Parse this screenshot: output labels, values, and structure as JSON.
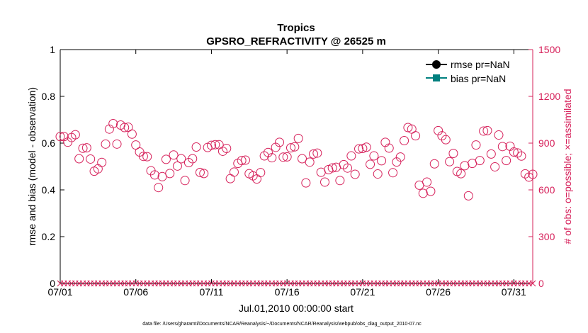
{
  "chart_data": {
    "type": "scatter",
    "title": "Tropics",
    "subtitle": "GPSRO_REFRACTIVITY @ 26525 m",
    "xlabel": "Jul.01,2010 00:00:00 start",
    "ylabel_left": "rmse and bias (model - observation)",
    "ylabel_right": "# of obs: o=possible; ×=assimilated",
    "footnote": "data file: /Users/gharamti/Documents/NCAR/Reanalysis/~/Documents/NCAR/Reanalysis/webpub/obs_diag_output_2010-07.nc",
    "x_ticks": [
      "07/01",
      "07/06",
      "07/11",
      "07/16",
      "07/21",
      "07/26",
      "07/31"
    ],
    "xlim_days": [
      0,
      31.25
    ],
    "ylim_left": [
      0,
      1
    ],
    "yticks_left": [
      "0",
      "0.2",
      "0.4",
      "0.6",
      "0.8",
      "1"
    ],
    "ylim_right": [
      0,
      1500
    ],
    "yticks_right": [
      "0",
      "300",
      "600",
      "900",
      "1200",
      "1500"
    ],
    "legend": [
      {
        "label": "rmse pr=NaN",
        "color": "#000000",
        "marker": "circle"
      },
      {
        "label": "bias pr=NaN",
        "color": "#00807f",
        "marker": "square"
      }
    ],
    "colors": {
      "obs": "#d6205a",
      "rmse": "#000000",
      "bias": "#00807f",
      "axis_right": "#d6205a"
    },
    "series": [
      {
        "name": "possible obs (o)",
        "axis": "right",
        "x_days": [
          0.0,
          0.25,
          0.5,
          0.75,
          1.0,
          1.25,
          1.5,
          1.75,
          2.0,
          2.25,
          2.5,
          2.75,
          3.0,
          3.25,
          3.5,
          3.75,
          4.0,
          4.25,
          4.5,
          4.75,
          5.0,
          5.25,
          5.5,
          5.75,
          6.0,
          6.25,
          6.5,
          6.75,
          7.0,
          7.25,
          7.5,
          7.75,
          8.0,
          8.25,
          8.5,
          8.75,
          9.0,
          9.25,
          9.5,
          9.75,
          10.0,
          10.25,
          10.5,
          10.75,
          11.0,
          11.25,
          11.5,
          11.75,
          12.0,
          12.25,
          12.5,
          12.75,
          13.0,
          13.25,
          13.5,
          13.75,
          14.0,
          14.25,
          14.5,
          14.75,
          15.0,
          15.25,
          15.5,
          15.75,
          16.0,
          16.25,
          16.5,
          16.75,
          17.0,
          17.25,
          17.5,
          17.75,
          18.0,
          18.25,
          18.5,
          18.75,
          19.0,
          19.25,
          19.5,
          19.75,
          20.0,
          20.25,
          20.5,
          20.75,
          21.0,
          21.25,
          21.5,
          21.75,
          22.0,
          22.25,
          22.5,
          22.75,
          23.0,
          23.25,
          23.5,
          23.75,
          24.0,
          24.25,
          24.5,
          24.75,
          25.0,
          25.25,
          25.5,
          25.75,
          26.0,
          26.25,
          26.5,
          26.75,
          27.0,
          27.25,
          27.5,
          27.75,
          28.0,
          28.25,
          28.5,
          28.75,
          29.0,
          29.25,
          29.5,
          29.75,
          30.0,
          30.25,
          30.5,
          30.75,
          31.0,
          31.25
        ],
        "values": [
          942,
          942,
          906,
          936,
          954,
          800,
          867,
          870,
          798,
          720,
          735,
          776,
          894,
          990,
          1025,
          894,
          1016,
          1000,
          1002,
          958,
          888,
          843,
          815,
          813,
          723,
          696,
          615,
          685,
          796,
          705,
          824,
          753,
          800,
          660,
          775,
          800,
          875,
          712,
          705,
          872,
          886,
          890,
          890,
          848,
          866,
          672,
          714,
          770,
          788,
          791,
          704,
          690,
          670,
          711,
          818,
          840,
          806,
          873,
          905,
          810,
          812,
          870,
          876,
          930,
          800,
          645,
          778,
          830,
          836,
          713,
          650,
          730,
          741,
          745,
          660,
          762,
          740,
          818,
          700,
          863,
          866,
          874,
          764,
          818,
          702,
          787,
          905,
          868,
          710,
          779,
          811,
          916,
          1000,
          990,
          947,
          630,
          578,
          650,
          591,
          767,
          980,
          947,
          922,
          781,
          834,
          718,
          704,
          755,
          562,
          770,
          888,
          788,
          977,
          980,
          830,
          748,
          952,
          878,
          788,
          880,
          843,
          837,
          817,
          703,
          682,
          700
        ],
        "marker": "open-circle"
      },
      {
        "name": "assimilated obs (×)",
        "axis": "right",
        "value_all": 0,
        "count": 126,
        "marker": "x"
      }
    ]
  }
}
